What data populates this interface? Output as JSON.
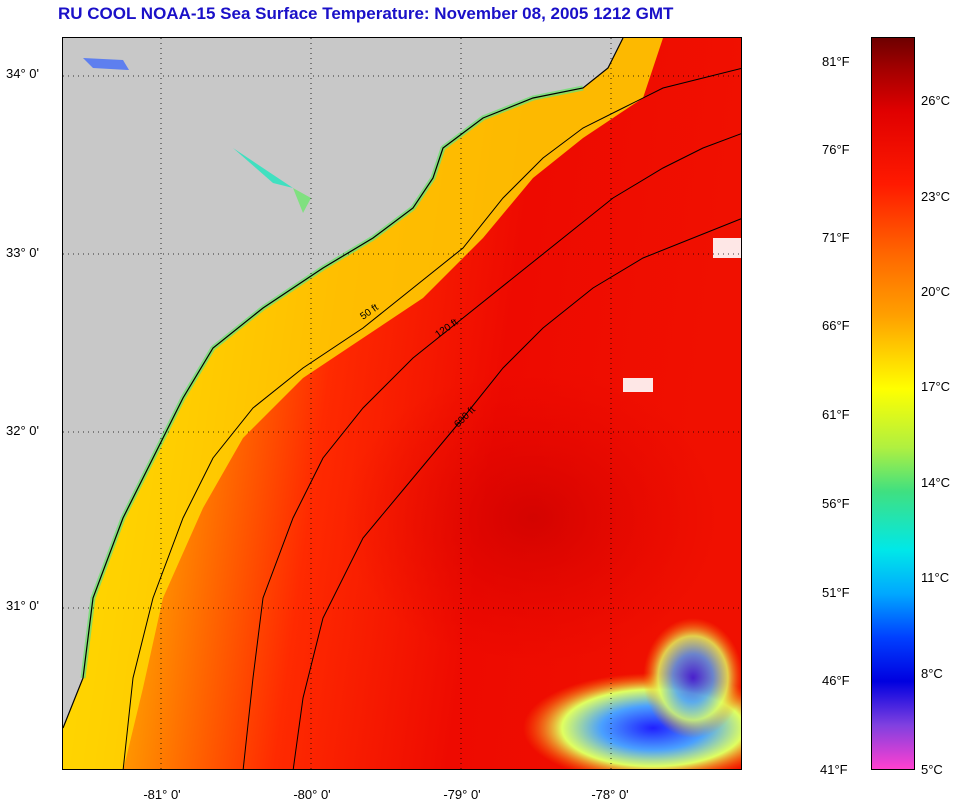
{
  "title": "RU COOL  NOAA-15  Sea Surface Temperature:  November 08, 2005 1212 GMT",
  "latitude_labels": [
    "34° 0'",
    "33° 0'",
    "32° 0'",
    "31° 0'"
  ],
  "longitude_labels": [
    "-81° 0'",
    "-80° 0'",
    "-79° 0'",
    "-78° 0'"
  ],
  "depth_contour_labels": [
    "50 ft",
    "120 ft",
    "600 ft"
  ],
  "colorbar": {
    "fahrenheit": [
      "81°F",
      "76°F",
      "71°F",
      "66°F",
      "61°F",
      "56°F",
      "51°F",
      "46°F",
      "41°F"
    ],
    "celsius": [
      "26°C",
      "23°C",
      "20°C",
      "17°C",
      "14°C",
      "11°C",
      "8°C",
      "5°C"
    ]
  },
  "colors": {
    "title": "#1a10c8",
    "land": "#c8c8c8",
    "warm": "#e00000",
    "cool": "#ffff00",
    "cold": "#0000e0"
  }
}
